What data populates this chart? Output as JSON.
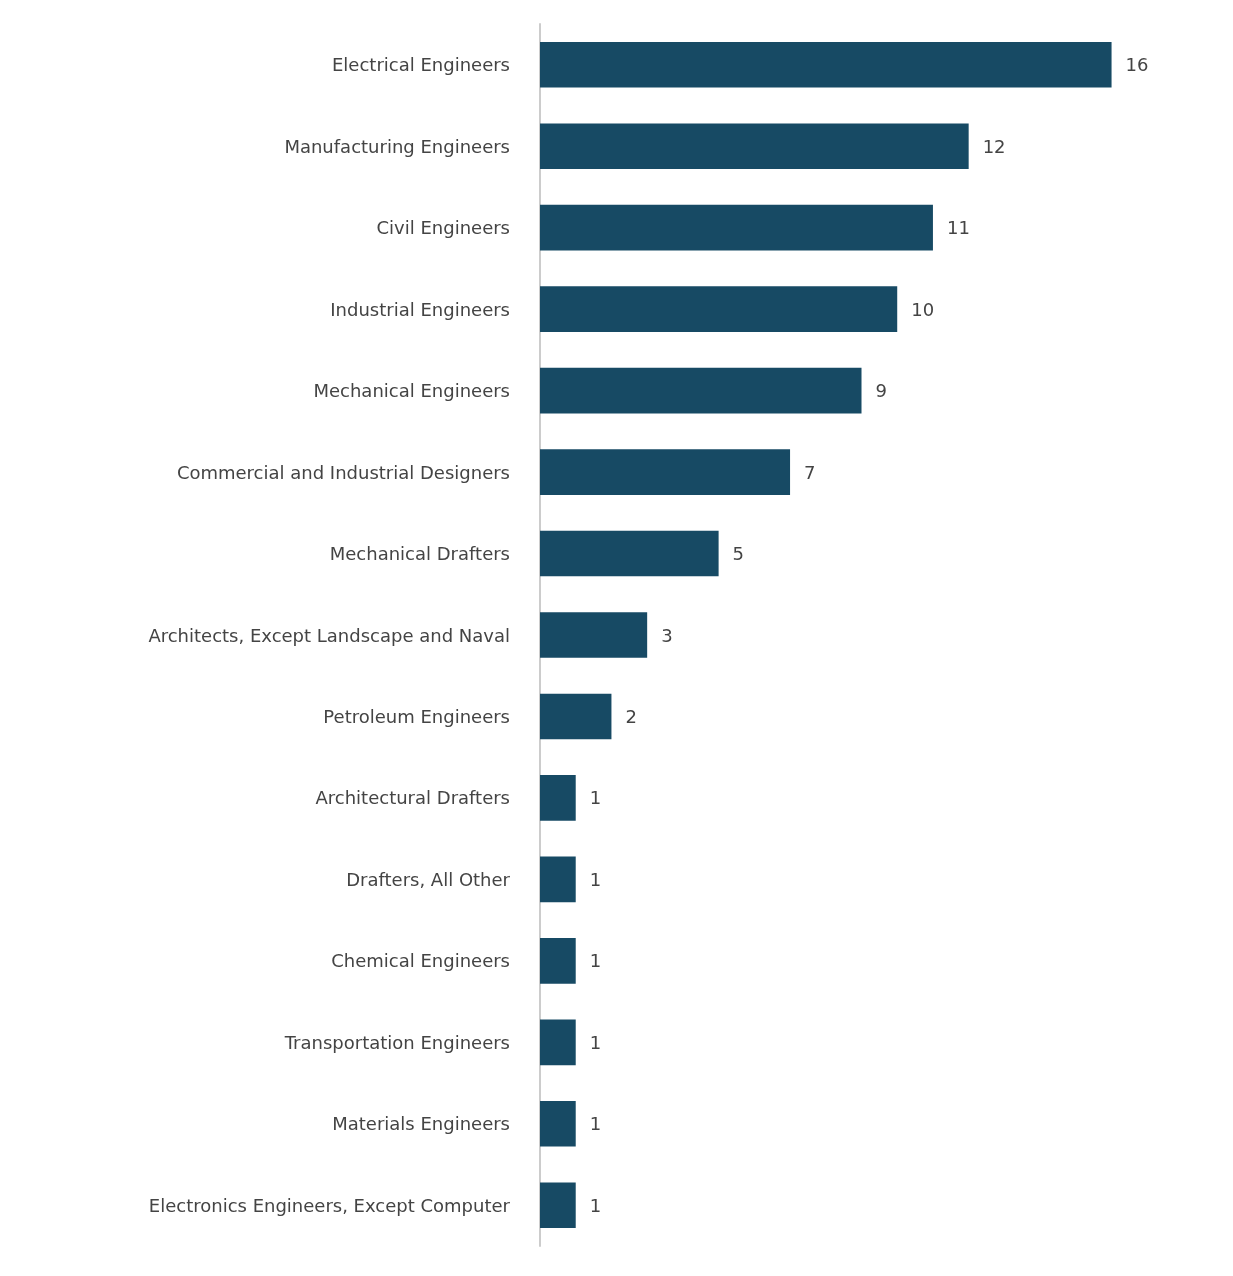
{
  "chart_data": {
    "type": "bar",
    "orientation": "horizontal",
    "categories": [
      "Electrical Engineers",
      "Manufacturing Engineers",
      "Civil Engineers",
      "Industrial Engineers",
      "Mechanical Engineers",
      "Commercial and Industrial Designers",
      "Mechanical Drafters",
      "Architects, Except Landscape and Naval",
      "Petroleum Engineers",
      "Architectural Drafters",
      "Drafters, All Other",
      "Chemical Engineers",
      "Transportation Engineers",
      "Materials Engineers",
      "Electronics Engineers, Except Computer"
    ],
    "values": [
      16,
      12,
      11,
      10,
      9,
      7,
      5,
      3,
      2,
      1,
      1,
      1,
      1,
      1,
      1
    ],
    "color": "#174a64",
    "data_labels": true
  }
}
